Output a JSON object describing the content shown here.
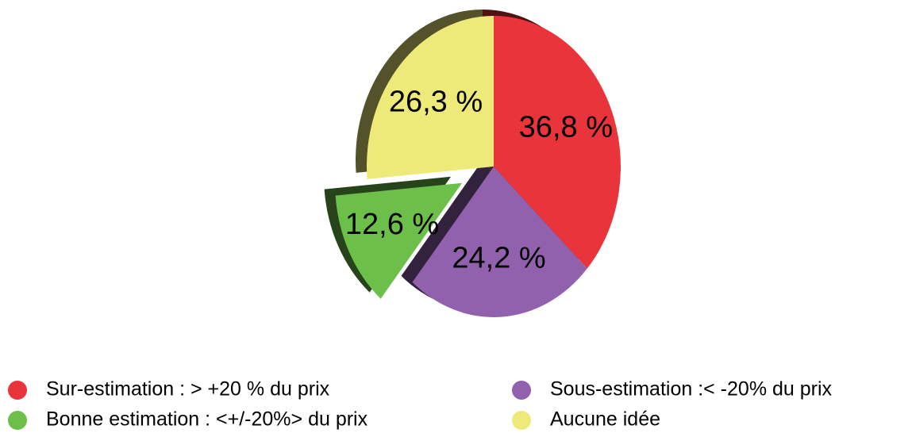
{
  "chart_data": {
    "type": "pie",
    "categories": [
      "Sur-estimation : > +20 % du prix",
      "Sous-estimation :< -20% du prix",
      "Bonne estimation : <+/-20%> du prix",
      "Aucune idée"
    ],
    "values": [
      36.8,
      24.2,
      12.6,
      26.3
    ],
    "value_labels": [
      "36,8 %",
      "24,2 %",
      "12,6 %",
      "26,3 %"
    ],
    "colors": [
      "#e8343a",
      "#9261ae",
      "#6cc04a",
      "#eeea79"
    ],
    "exploded": [
      false,
      false,
      true,
      false
    ]
  }
}
